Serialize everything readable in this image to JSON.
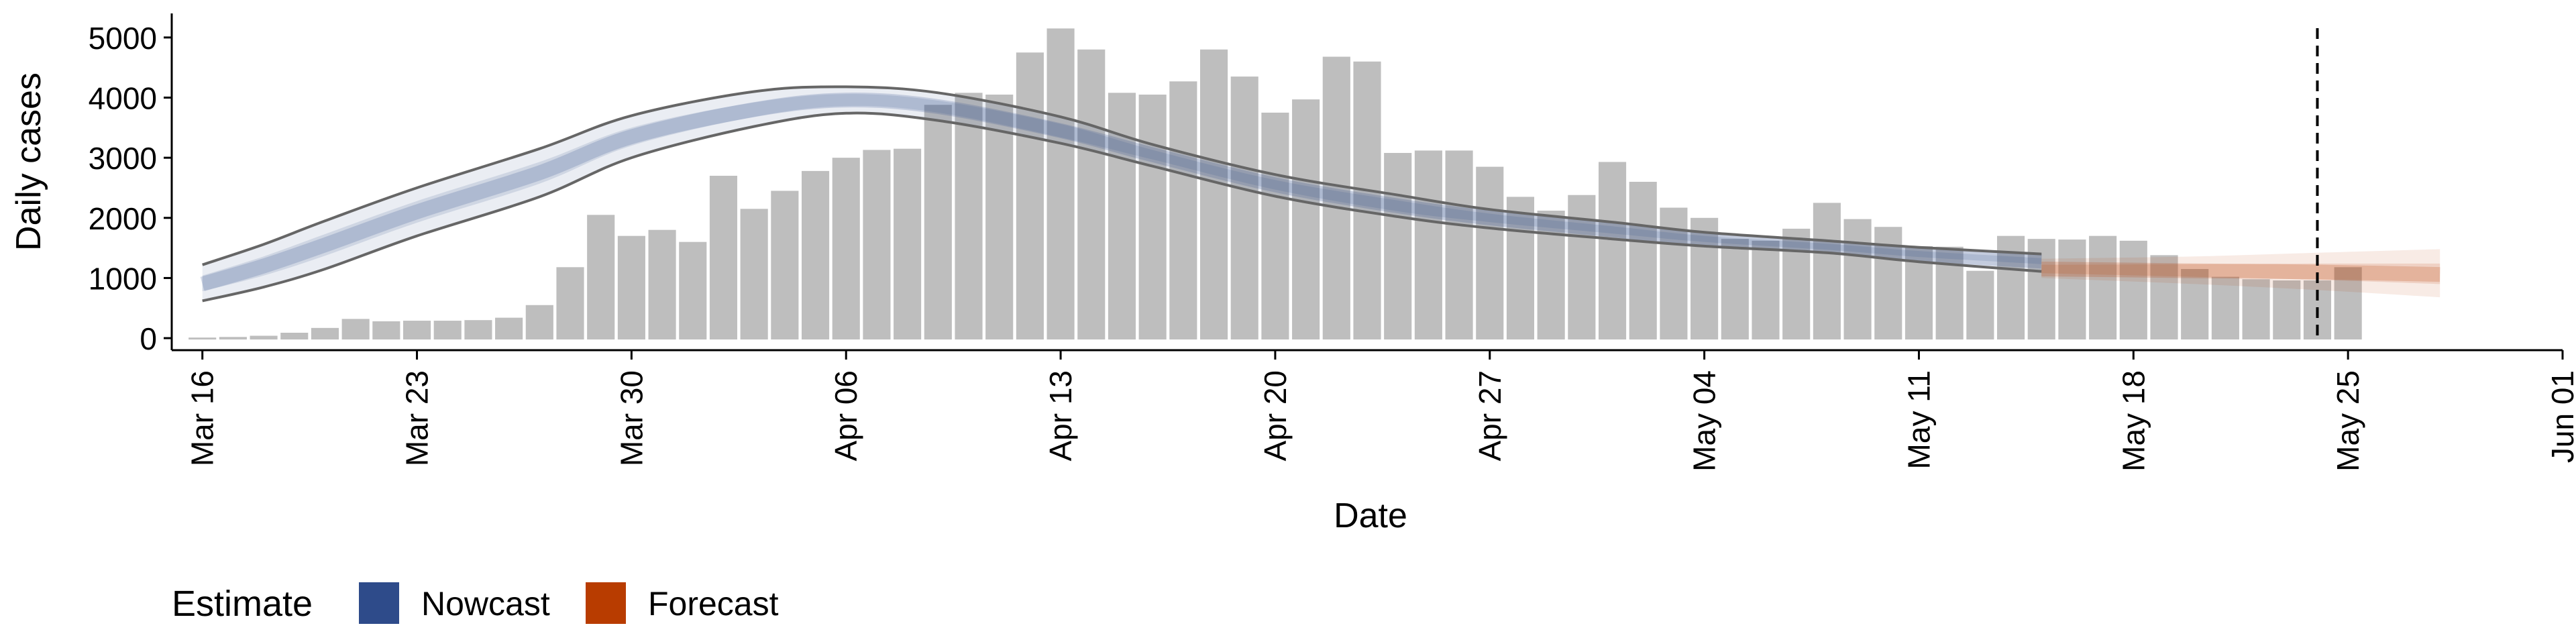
{
  "chart_data": {
    "type": "bar",
    "xlabel": "Date",
    "ylabel": "Daily cases",
    "ylim": [
      -200,
      5400
    ],
    "yticks": [
      0,
      1000,
      2000,
      3000,
      4000,
      5000
    ],
    "xlim": [
      "2020-03-15",
      "2020-06-01"
    ],
    "xticks": [
      {
        "date": "2020-03-16",
        "label": "Mar 16"
      },
      {
        "date": "2020-03-23",
        "label": "Mar 23"
      },
      {
        "date": "2020-03-30",
        "label": "Mar 30"
      },
      {
        "date": "2020-04-06",
        "label": "Apr 06"
      },
      {
        "date": "2020-04-13",
        "label": "Apr 13"
      },
      {
        "date": "2020-04-20",
        "label": "Apr 20"
      },
      {
        "date": "2020-04-27",
        "label": "Apr 27"
      },
      {
        "date": "2020-05-04",
        "label": "May 04"
      },
      {
        "date": "2020-05-11",
        "label": "May 11"
      },
      {
        "date": "2020-05-18",
        "label": "May 18"
      },
      {
        "date": "2020-05-25",
        "label": "May 25"
      },
      {
        "date": "2020-06-01",
        "label": "Jun 01"
      }
    ],
    "reported_cases": {
      "start_date": "2020-03-16",
      "values": [
        10,
        20,
        40,
        90,
        170,
        320,
        280,
        290,
        290,
        300,
        340,
        550,
        1180,
        2050,
        1700,
        1800,
        1600,
        2700,
        2150,
        2450,
        2780,
        3000,
        3130,
        3150,
        3880,
        4080,
        4050,
        4750,
        5150,
        4800,
        4080,
        4050,
        4270,
        4800,
        4350,
        3750,
        3970,
        4680,
        4600,
        3080,
        3120,
        3120,
        2850,
        2350,
        2120,
        2380,
        2930,
        2600,
        2170,
        2000,
        1650,
        1620,
        1820,
        2250,
        1980,
        1850,
        1530,
        1520,
        1120,
        1700,
        1650,
        1640,
        1700,
        1620,
        1380,
        1150,
        1020,
        980,
        960,
        960,
        1180
      ]
    },
    "estimates": [
      {
        "name": "Nowcast",
        "color": "#2e4b8a",
        "dates": [
          "2020-03-16",
          "2020-03-18",
          "2020-03-20",
          "2020-03-23",
          "2020-03-27",
          "2020-03-30",
          "2020-04-03",
          "2020-04-06",
          "2020-04-09",
          "2020-04-13",
          "2020-04-16",
          "2020-04-20",
          "2020-04-24",
          "2020-04-27",
          "2020-05-01",
          "2020-05-04",
          "2020-05-08",
          "2020-05-11",
          "2020-05-15"
        ],
        "median": [
          900,
          1200,
          1550,
          2100,
          2750,
          3350,
          3800,
          3960,
          3850,
          3450,
          3050,
          2550,
          2200,
          2000,
          1800,
          1650,
          1520,
          1400,
          1280
        ],
        "upper90": [
          1220,
          1560,
          1950,
          2500,
          3150,
          3700,
          4100,
          4180,
          4080,
          3680,
          3220,
          2720,
          2380,
          2140,
          1930,
          1760,
          1620,
          1510,
          1400
        ],
        "lower90": [
          620,
          850,
          1150,
          1700,
          2350,
          3000,
          3520,
          3740,
          3620,
          3240,
          2860,
          2360,
          2020,
          1830,
          1650,
          1530,
          1420,
          1270,
          1110
        ],
        "upper50": [
          1040,
          1360,
          1730,
          2280,
          2930,
          3500,
          3920,
          4060,
          3950,
          3560,
          3130,
          2630,
          2290,
          2070,
          1860,
          1700,
          1570,
          1450,
          1330
        ],
        "lower50": [
          780,
          1040,
          1370,
          1920,
          2570,
          3200,
          3680,
          3860,
          3750,
          3340,
          2970,
          2470,
          2110,
          1930,
          1740,
          1600,
          1470,
          1350,
          1230
        ]
      },
      {
        "name": "Forecast",
        "color": "#b83c00",
        "dates": [
          "2020-05-15",
          "2020-05-20",
          "2020-05-24",
          "2020-05-28"
        ],
        "median": [
          1150,
          1120,
          1100,
          1060
        ],
        "upper90": [
          1320,
          1360,
          1420,
          1480
        ],
        "lower90": [
          1000,
          900,
          800,
          680
        ],
        "upper50": [
          1220,
          1230,
          1240,
          1240
        ],
        "lower50": [
          1080,
          1020,
          970,
          900
        ]
      }
    ],
    "vline_date": "2020-05-24",
    "legend": {
      "title": "Estimate",
      "position": "bottom-left",
      "items": [
        {
          "label": "Nowcast",
          "color": "#2e4b8a"
        },
        {
          "label": "Forecast",
          "color": "#b83c00"
        }
      ]
    },
    "grid": false
  }
}
